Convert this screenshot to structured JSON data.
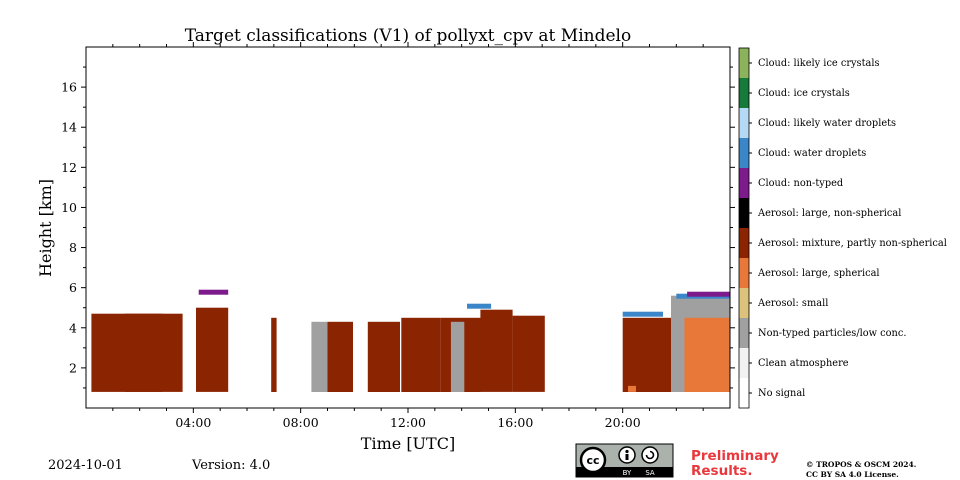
{
  "chart_data": {
    "type": "heatmap",
    "title": "Target classifications (V1) of pollyxt_cpv at Mindelo",
    "xlabel": "Time [UTC]",
    "ylabel": "Height [km]",
    "x_range_hours": [
      0,
      24
    ],
    "y_range_km": [
      0,
      18
    ],
    "x_ticks": [
      4,
      8,
      12,
      16,
      20
    ],
    "x_tick_labels": [
      "04:00",
      "08:00",
      "12:00",
      "16:00",
      "20:00"
    ],
    "y_ticks": [
      2,
      4,
      6,
      8,
      10,
      12,
      14,
      16
    ],
    "y_tick_labels": [
      "2",
      "4",
      "6",
      "8",
      "10",
      "12",
      "14",
      "16"
    ],
    "classes": [
      {
        "label": "No signal",
        "color": "#ffffff"
      },
      {
        "label": "Clean atmosphere",
        "color": "#f2f2f2"
      },
      {
        "label": "Non-typed particles/low conc.",
        "color": "#a0a0a0"
      },
      {
        "label": "Aerosol: small",
        "color": "#dcc27a"
      },
      {
        "label": "Aerosol: large, spherical",
        "color": "#e8773a"
      },
      {
        "label": "Aerosol: mixture, partly non-spherical",
        "color": "#8b2400"
      },
      {
        "label": "Aerosol: large, non-spherical",
        "color": "#000000"
      },
      {
        "label": "Cloud: non-typed",
        "color": "#7d1a8c"
      },
      {
        "label": "Cloud: water droplets",
        "color": "#3b86c8"
      },
      {
        "label": "Cloud: likely water droplets",
        "color": "#b5d9f5"
      },
      {
        "label": "Cloud: ice crystals",
        "color": "#157a3a"
      },
      {
        "label": "Cloud: likely ice crystals",
        "color": "#8cb35c"
      }
    ],
    "layers": [
      {
        "class": "Aerosol: mixture, partly non-spherical",
        "segments": [
          [
            0.2,
            3.6,
            4.7
          ],
          [
            1.45,
            2.85,
            4.7
          ],
          [
            4.1,
            5.3,
            5.0
          ],
          [
            6.9,
            7.1,
            4.5
          ],
          [
            9.0,
            9.95,
            4.3
          ],
          [
            10.5,
            11.7,
            4.3
          ],
          [
            11.75,
            13.2,
            4.5
          ],
          [
            13.2,
            14.7,
            4.5
          ],
          [
            14.7,
            15.9,
            4.9
          ],
          [
            15.9,
            17.1,
            4.6
          ],
          [
            20.0,
            24.0,
            4.5
          ]
        ]
      },
      {
        "class": "Non-typed particles/low conc.",
        "segments": [
          [
            8.4,
            9.0,
            4.3
          ],
          [
            13.6,
            14.1,
            4.3
          ],
          [
            21.8,
            24.0,
            5.6
          ]
        ]
      },
      {
        "class": "Aerosol: large, spherical",
        "segments": [
          [
            20.2,
            20.5,
            1.1
          ],
          [
            22.3,
            24.0,
            4.5
          ]
        ]
      },
      {
        "class": "Cloud: water droplets",
        "segments": [
          [
            14.2,
            15.1,
            5.2
          ],
          [
            20.0,
            21.5,
            4.8
          ],
          [
            22.0,
            24.0,
            5.7
          ]
        ]
      },
      {
        "class": "Cloud: non-typed",
        "segments": [
          [
            4.2,
            5.3,
            5.9
          ],
          [
            22.4,
            24.0,
            5.8
          ]
        ]
      }
    ],
    "ground_km": 0.8,
    "colorbar_position": "right"
  },
  "footer": {
    "date": "2024-10-01",
    "version": "Version: 4.0",
    "preliminary": "Preliminary Results.",
    "copyright_line1": "© TROPOS & OSCM 2024.",
    "copyright_line2": "CC BY SA 4.0 License.",
    "cc_badge": "cc",
    "cc_by": "BY",
    "cc_sa": "SA"
  }
}
